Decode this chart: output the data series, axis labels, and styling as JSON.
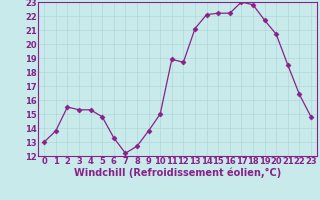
{
  "x": [
    0,
    1,
    2,
    3,
    4,
    5,
    6,
    7,
    8,
    9,
    10,
    11,
    12,
    13,
    14,
    15,
    16,
    17,
    18,
    19,
    20,
    21,
    22,
    23
  ],
  "y": [
    13,
    13.8,
    15.5,
    15.3,
    15.3,
    14.8,
    13.3,
    12.2,
    12.7,
    13.8,
    15.0,
    18.9,
    18.7,
    21.1,
    22.1,
    22.2,
    22.2,
    23.0,
    22.8,
    21.7,
    20.7,
    18.5,
    16.4,
    14.8
  ],
  "line_color": "#882288",
  "marker": "D",
  "markersize": 2.5,
  "linewidth": 0.9,
  "xlim": [
    -0.5,
    23.5
  ],
  "ylim": [
    12,
    23
  ],
  "yticks": [
    12,
    13,
    14,
    15,
    16,
    17,
    18,
    19,
    20,
    21,
    22,
    23
  ],
  "xticks": [
    0,
    1,
    2,
    3,
    4,
    5,
    6,
    7,
    8,
    9,
    10,
    11,
    12,
    13,
    14,
    15,
    16,
    17,
    18,
    19,
    20,
    21,
    22,
    23
  ],
  "xlabel": "Windchill (Refroidissement éolien,°C)",
  "xlabel_fontsize": 7,
  "tick_fontsize": 6,
  "grid_color": "#b0d8d8",
  "bg_color": "#c8eaea",
  "fig_bg": "#c8eaea",
  "spine_color": "#888888"
}
